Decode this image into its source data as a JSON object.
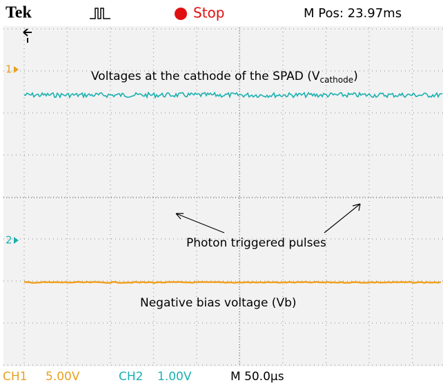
{
  "header": {
    "brand": "Tek",
    "state": "Stop",
    "position": "M Pos: 23.97ms"
  },
  "markers": {
    "ch1": "1",
    "ch2": "2"
  },
  "annotations": {
    "cathode": {
      "text": "Voltages at the cathode of the SPAD (V",
      "subscript": "cathode",
      "tail": ")"
    },
    "pulses": "Photon triggered pulses",
    "bias": "Negative bias voltage (Vb)"
  },
  "footer": {
    "ch1_label": "CH1",
    "ch1_scale": "5.00V",
    "ch2_label": "CH2",
    "ch2_scale": "1.00V",
    "timebase": "M 50.0µs"
  }
}
